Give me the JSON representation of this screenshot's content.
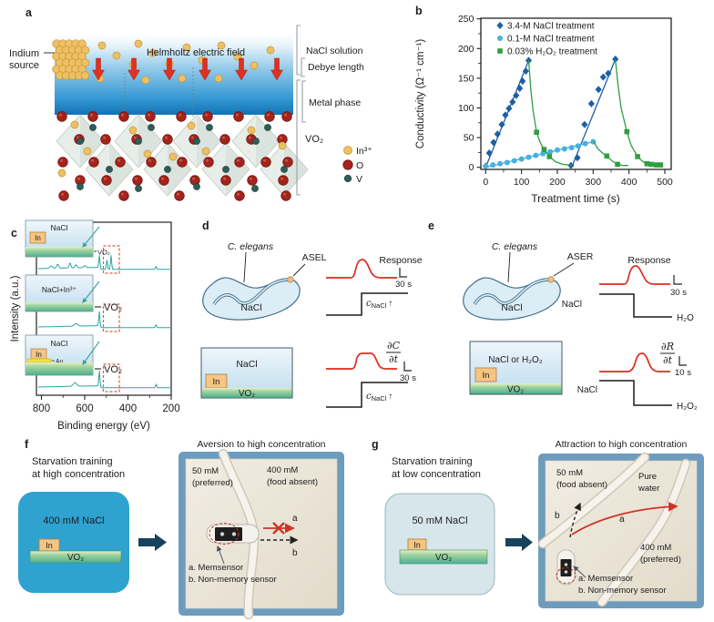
{
  "panels": {
    "a": "a",
    "b": "b",
    "c": "c",
    "d": "d",
    "e": "e",
    "f": "f",
    "g": "g"
  },
  "colors": {
    "series_dark_blue": "#1d5fa5",
    "series_light_blue": "#46b1e1",
    "series_green": "#2f9e41",
    "spectrum_teal": "#2aa5a0",
    "dashed_red": "#e0584a",
    "arrow_red": "#e0301f",
    "field_text_red": "#d43a2f",
    "gold": "#edc063",
    "oxygen_red": "#a3241c",
    "vanadium_teal": "#2f5d57",
    "solution_blue": "#1272b4",
    "vo2_green": "#57b793",
    "in_orange": "#f6c583",
    "high_conc_blue": "#2fa2cf",
    "low_conc_blue": "#d6e6ea",
    "tray_blue": "#6d9cbd",
    "plate_cream": "#ece6da",
    "memsensor_red": "#cc3526"
  },
  "panel_a": {
    "source_line1": "Indium",
    "source_line2": "source",
    "field_label": "Helmholtz electric field",
    "bracket_nacl": "NaCl solution",
    "bracket_debye": "Debye length",
    "bracket_metal": "Metal phase",
    "bracket_vo2": "VO₂",
    "legend": [
      {
        "label": "In³⁺"
      },
      {
        "label": "O"
      },
      {
        "label": "V"
      }
    ]
  },
  "chart_data": [
    {
      "id": "conductivity-vs-time",
      "type": "scatter-line",
      "title": "",
      "xlabel": "Treatment time (s)",
      "ylabel": "Conductivity (Ω⁻¹ cm⁻¹)",
      "xlim": [
        0,
        500
      ],
      "ylim": [
        0,
        250
      ],
      "xticks": [
        0,
        100,
        200,
        300,
        400,
        500
      ],
      "yticks": [
        0,
        50,
        100,
        150,
        200,
        250
      ],
      "grid": false,
      "legend_position": "top-left",
      "series": [
        {
          "name": "3.4-M NaCl treatment",
          "color": "#1d5fa5",
          "marker": "diamond",
          "points": [
            [
              0,
              2
            ],
            [
              10,
              24
            ],
            [
              22,
              42
            ],
            [
              33,
              56
            ],
            [
              45,
              72
            ],
            [
              55,
              88
            ],
            [
              65,
              99
            ],
            [
              75,
              110
            ],
            [
              85,
              121
            ],
            [
              95,
              133
            ],
            [
              103,
              145
            ],
            [
              112,
              162
            ],
            [
              120,
              180
            ],
            [
              238,
              3
            ],
            [
              256,
              16
            ],
            [
              276,
              72
            ],
            [
              295,
              107
            ],
            [
              315,
              131
            ],
            [
              328,
              152
            ],
            [
              342,
              158
            ],
            [
              362,
              182
            ]
          ],
          "fit_lines": [
            [
              [
                0,
                0
              ],
              [
                120,
                180
              ]
            ],
            [
              [
                240,
                0
              ],
              [
                362,
                182
              ]
            ]
          ]
        },
        {
          "name": "0.1-M NaCl treatment",
          "color": "#46b1e1",
          "marker": "circle",
          "points": [
            [
              0,
              2
            ],
            [
              20,
              4
            ],
            [
              40,
              6
            ],
            [
              60,
              8
            ],
            [
              80,
              11
            ],
            [
              100,
              14
            ],
            [
              120,
              17
            ],
            [
              140,
              20
            ],
            [
              160,
              23
            ],
            [
              180,
              26
            ],
            [
              200,
              29
            ],
            [
              220,
              31
            ],
            [
              240,
              33
            ],
            [
              258,
              36
            ],
            [
              278,
              40
            ],
            [
              300,
              43
            ]
          ],
          "fit_lines": [
            [
              [
                0,
                0
              ],
              [
                300,
                43
              ]
            ]
          ]
        },
        {
          "name": "0.03% H₂O₂ treatment",
          "color": "#2f9e41",
          "marker": "square",
          "points": [
            [
              142,
              59
            ],
            [
              163,
              30
            ],
            [
              178,
              18
            ],
            [
              338,
              19
            ],
            [
              368,
              5
            ],
            [
              394,
              60
            ],
            [
              424,
              18
            ],
            [
              450,
              6
            ],
            [
              462,
              5
            ],
            [
              476,
              4
            ],
            [
              488,
              4
            ]
          ],
          "curves": [
            [
              [
                120,
                180
              ],
              [
                126,
                130
              ],
              [
                132,
                97
              ],
              [
                142,
                59
              ],
              [
                152,
                42
              ],
              [
                163,
                30
              ],
              [
                178,
                18
              ],
              [
                196,
                9
              ],
              [
                215,
                5
              ],
              [
                240,
                3
              ]
            ],
            [
              [
                302,
                43
              ],
              [
                312,
                32
              ],
              [
                324,
                25
              ],
              [
                338,
                19
              ],
              [
                352,
                11
              ],
              [
                368,
                5
              ],
              [
                384,
                3
              ],
              [
                398,
                3
              ]
            ],
            [
              [
                362,
                182
              ],
              [
                370,
                135
              ],
              [
                378,
                100
              ],
              [
                394,
                60
              ],
              [
                406,
                37
              ],
              [
                424,
                18
              ],
              [
                438,
                10
              ],
              [
                450,
                6
              ],
              [
                462,
                5
              ],
              [
                476,
                4
              ],
              [
                490,
                4
              ]
            ]
          ]
        }
      ]
    },
    {
      "id": "xps-spectra",
      "type": "line",
      "xlabel": "Binding energy (eV)",
      "ylabel": "Intensity (a.u.)",
      "xlim": [
        840,
        190
      ],
      "xticks": [
        800,
        600,
        400,
        200
      ],
      "xticks_minor": [
        700,
        500,
        300
      ],
      "series": [
        {
          "name": "NaCl / In / VO₂",
          "in3d_peaks_detected": true,
          "peaks": [
            {
              "pos": 755,
              "h": 5,
              "w": 6
            },
            {
              "pos": 725,
              "h": 8,
              "w": 5
            },
            {
              "pos": 668,
              "h": 10,
              "w": 4
            },
            {
              "pos": 640,
              "h": 6,
              "w": 5
            },
            {
              "pos": 600,
              "h": 4,
              "w": 5
            },
            {
              "pos": 532,
              "h": 26,
              "w": 2.5
            },
            {
              "pos": 497,
              "h": 20,
              "w": 2.5
            },
            {
              "pos": 478,
              "h": 28,
              "w": 2.5
            },
            {
              "pos": 270,
              "h": 6,
              "w": 2.5
            }
          ]
        },
        {
          "name": "NaCl+In³⁺ / VO₂",
          "in3d_peaks_detected": false,
          "peaks": [
            {
              "pos": 640,
              "h": 5,
              "w": 8
            },
            {
              "pos": 532,
              "h": 30,
              "w": 2.5
            },
            {
              "pos": 270,
              "h": 6,
              "w": 2.5
            }
          ]
        },
        {
          "name": "NaCl / In / Au / VO₂",
          "in3d_peaks_detected": false,
          "peaks": [
            {
              "pos": 645,
              "h": 7,
              "w": 8
            },
            {
              "pos": 532,
              "h": 32,
              "w": 2.5
            },
            {
              "pos": 270,
              "h": 7,
              "w": 2.5
            }
          ]
        }
      ],
      "insets": [
        {
          "solution": "NaCl",
          "metal": "In",
          "film": "VO₂"
        },
        {
          "solution": "NaCl+In³⁺",
          "film": "VO₂"
        },
        {
          "solution": "NaCl",
          "metal": "In",
          "buffer": "Au",
          "film": "VO₂"
        }
      ]
    }
  ],
  "panel_d": {
    "worm_species": "C. elegans",
    "neuron": "ASEL",
    "worm_env": "NaCl",
    "response_label": "Response",
    "scale_top": "30 s",
    "scale_bottom": "30 s",
    "step_c": "c",
    "step_sub": "NaCl",
    "step_arrow": "↑",
    "deriv_num": "∂C",
    "deriv_den": "∂t",
    "box_solution": "NaCl",
    "box_metal": "In",
    "box_film": "VO₂"
  },
  "panel_e": {
    "worm_species": "C. elegans",
    "neuron": "ASER",
    "worm_env": "NaCl",
    "response_label": "Response",
    "scale_top": "30 s",
    "scale_bottom": "10 s",
    "deriv_num": "∂R",
    "deriv_den": "∂t",
    "step_top_left": "NaCl",
    "step_top_right": "H₂O",
    "step_bottom_left": "NaCl",
    "step_bottom_right": "H₂O₂",
    "box_solution": "NaCl or H₂O₂",
    "box_metal": "In",
    "box_film": "VO₂"
  },
  "panel_f": {
    "training_line1": "Starvation training",
    "training_line2": "at high concentration",
    "beaker_text": "400 mM NaCl",
    "metal": "In",
    "film": "VO₂",
    "photo_title": "Aversion to high concentration",
    "left_region_l1": "50 mM",
    "left_region_l2": "(preferred)",
    "right_region_l1": "400 mM",
    "right_region_l2": "(food absent)",
    "path_a": "a",
    "path_b": "b",
    "legend_a": "a. Memsensor",
    "legend_b": "b. Non-memory sensor"
  },
  "panel_g": {
    "training_line1": "Starvation training",
    "training_line2": "at low concentration",
    "beaker_text": "50 mM NaCl",
    "metal": "In",
    "film": "VO₂",
    "photo_title": "Attraction to high concentration",
    "left_region_l1": "50 mM",
    "left_region_l2": "(food absent)",
    "mid_region_l1": "Pure",
    "mid_region_l2": "water",
    "right_region_l1": "400 mM",
    "right_region_l2": "(preferred)",
    "path_a": "a",
    "path_b": "b",
    "legend_a": "a. Memsensor",
    "legend_b": "b. Non-memory sensor"
  }
}
